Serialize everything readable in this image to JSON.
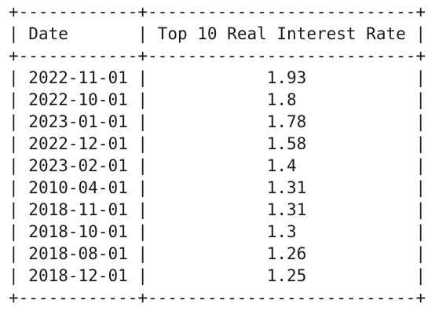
{
  "table": {
    "headers": [
      "Date",
      "Top 10 Real Interest Rate"
    ],
    "rows": [
      [
        "2022-11-01",
        "1.93"
      ],
      [
        "2022-10-01",
        "1.8"
      ],
      [
        "2023-01-01",
        "1.78"
      ],
      [
        "2022-12-01",
        "1.58"
      ],
      [
        "2023-02-01",
        "1.4"
      ],
      [
        "2010-04-01",
        "1.31"
      ],
      [
        "2018-11-01",
        "1.31"
      ],
      [
        "2018-10-01",
        "1.3"
      ],
      [
        "2018-08-01",
        "1.26"
      ],
      [
        "2018-12-01",
        "1.25"
      ]
    ]
  }
}
